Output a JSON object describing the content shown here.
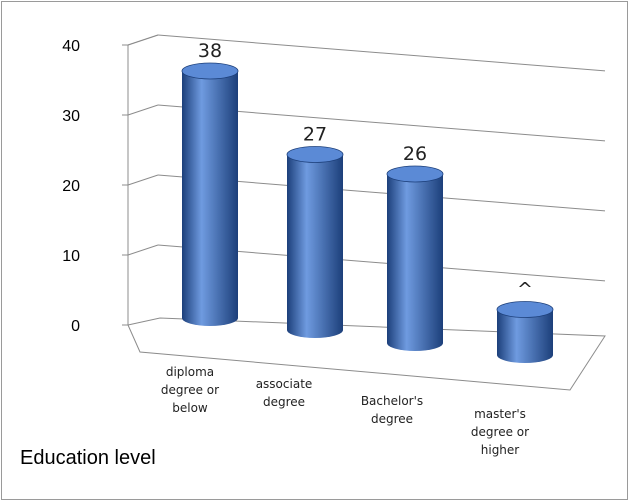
{
  "chart_data": {
    "type": "bar",
    "style": "3d-cylinder",
    "categories": [
      [
        "diploma",
        "degree or",
        "below"
      ],
      [
        "associate",
        "degree"
      ],
      [
        "Bachelor's",
        "degree"
      ],
      [
        "master's",
        "degree or",
        "higher"
      ]
    ],
    "values": [
      38,
      27,
      26,
      7
    ],
    "data_labels": [
      "38",
      "27",
      "26",
      "^"
    ],
    "xlabel": "Education level",
    "ylabel": "",
    "yticks": [
      "0",
      "10",
      "20",
      "30",
      "40"
    ],
    "ylim": [
      0,
      40
    ],
    "grid": true,
    "legend": "none",
    "colors": {
      "bar_body": "#2f66b8",
      "bar_light": "#6f9be0",
      "bar_dark": "#1c3f7a",
      "bar_top": "#5b8ad6",
      "grid": "#8c8c8c"
    }
  }
}
